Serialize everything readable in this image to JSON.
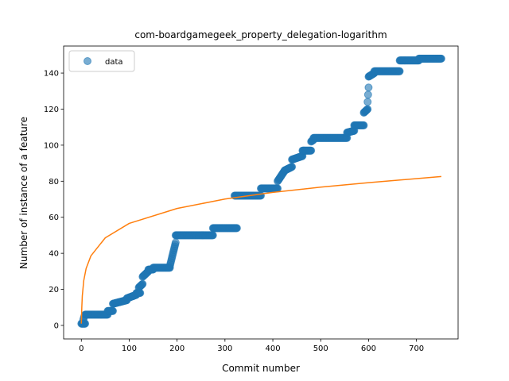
{
  "chart_data": {
    "type": "scatter",
    "title": "com-boardgamegeek_property_delegation-logarithm",
    "xlabel": "Commit number",
    "ylabel": "Number of instance of a feature",
    "xlim": [
      -37,
      787
    ],
    "ylim": [
      -7.5,
      155
    ],
    "xticks": [
      0,
      100,
      200,
      300,
      400,
      500,
      600,
      700
    ],
    "yticks": [
      0,
      20,
      40,
      60,
      80,
      100,
      120,
      140
    ],
    "grid": false,
    "legend": {
      "position": "top-left",
      "entries": [
        "data"
      ]
    },
    "colors": {
      "data": "#1f77b4",
      "fit": "#ff7f0e"
    },
    "series": [
      {
        "name": "data",
        "kind": "scatter",
        "segments": [
          [
            0,
            8,
            1,
            1
          ],
          [
            4,
            6,
            3,
            5
          ],
          [
            8,
            55,
            6,
            6
          ],
          [
            55,
            66,
            8,
            8
          ],
          [
            66,
            95,
            12,
            14
          ],
          [
            95,
            115,
            15,
            17
          ],
          [
            115,
            123,
            18,
            18
          ],
          [
            120,
            128,
            21,
            23
          ],
          [
            128,
            140,
            27,
            30
          ],
          [
            140,
            150,
            31,
            31
          ],
          [
            150,
            185,
            32,
            32
          ],
          [
            185,
            197,
            33,
            46
          ],
          [
            197,
            275,
            50,
            50
          ],
          [
            275,
            325,
            54,
            54
          ],
          [
            320,
            375,
            72,
            72
          ],
          [
            375,
            410,
            76,
            76
          ],
          [
            410,
            425,
            80,
            86
          ],
          [
            425,
            440,
            86,
            88
          ],
          [
            440,
            462,
            92,
            94
          ],
          [
            462,
            480,
            97,
            97
          ],
          [
            480,
            485,
            102,
            103
          ],
          [
            485,
            555,
            104,
            104
          ],
          [
            555,
            570,
            107,
            108
          ],
          [
            570,
            590,
            111,
            111
          ],
          [
            590,
            598,
            118,
            120
          ],
          [
            598,
            600,
            124,
            132
          ],
          [
            600,
            612,
            138,
            140
          ],
          [
            612,
            665,
            141,
            141
          ],
          [
            665,
            705,
            147,
            147
          ],
          [
            705,
            752,
            148,
            148
          ]
        ]
      },
      {
        "name": "",
        "kind": "line",
        "function": "log",
        "x": [
          0,
          1,
          2,
          5,
          10,
          20,
          50,
          100,
          200,
          300,
          400,
          500,
          600,
          752
        ],
        "y": [
          1,
          10.1,
          16.3,
          24.8,
          31.6,
          38.6,
          48.6,
          56.6,
          64.9,
          70.1,
          73.8,
          76.7,
          79.2,
          82.6
        ]
      }
    ]
  }
}
